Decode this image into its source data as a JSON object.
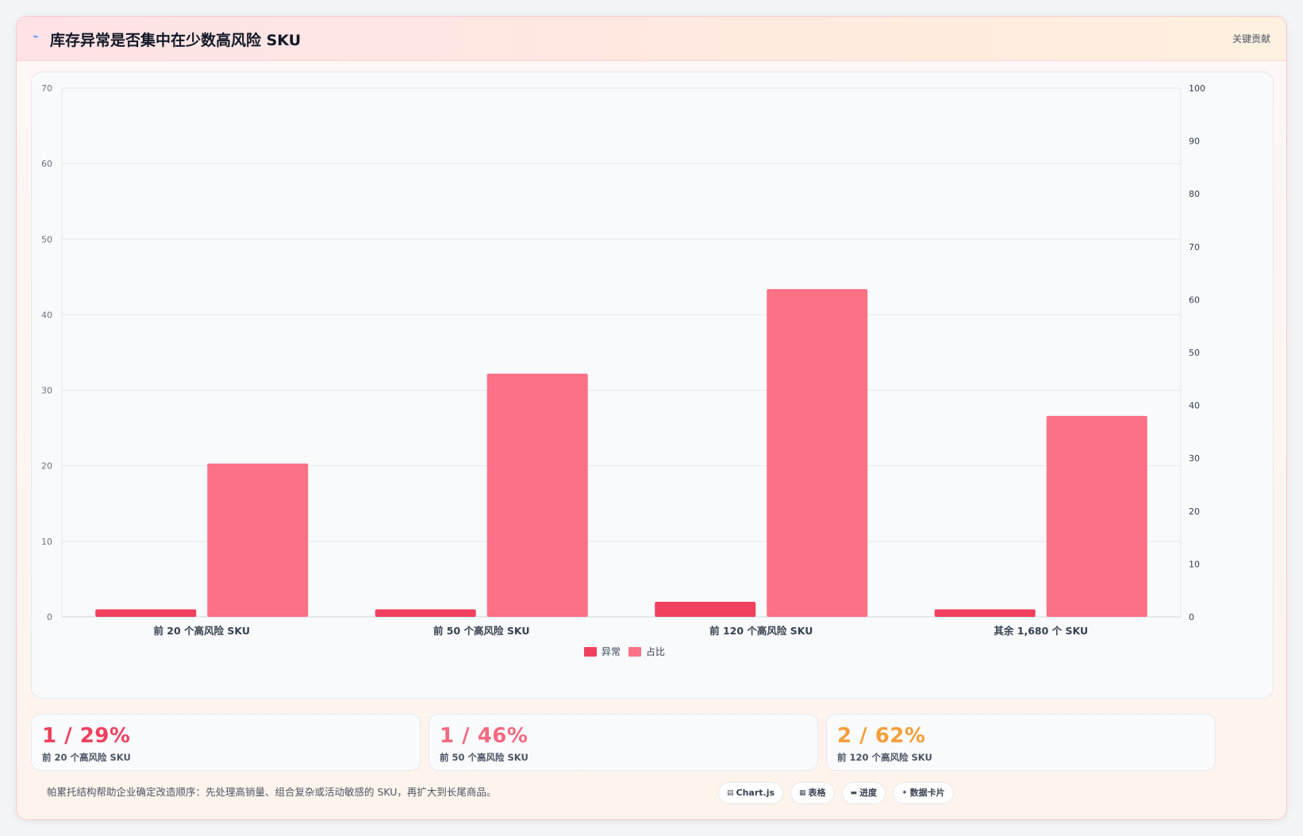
{
  "header": {
    "icon": "trend-line-icon",
    "title": "库存异常是否集中在少数高风险 SKU",
    "right_label": "关键贡献"
  },
  "colors": {
    "anomaly": "#f0405e",
    "share": "#fb7185",
    "stat_red": "#f0405e",
    "stat_pink": "#f4697f",
    "stat_orange": "#f59e3b"
  },
  "chart_data": {
    "type": "bar",
    "categories": [
      "前 20 个高风险 SKU",
      "前 50 个高风险 SKU",
      "前 120 个高风险 SKU",
      "其余 1,680 个 SKU"
    ],
    "series": [
      {
        "name": "异常",
        "axis": "left",
        "values": [
          1,
          1,
          2,
          1
        ]
      },
      {
        "name": "占比",
        "axis": "right",
        "values": [
          29,
          46,
          62,
          38
        ]
      }
    ],
    "y_left": {
      "min": 0,
      "max": 70,
      "ticks": [
        "0",
        "10",
        "20",
        "30",
        "40",
        "50",
        "60",
        "70"
      ]
    },
    "y_right": {
      "min": 0,
      "max": 100,
      "ticks": [
        "0",
        "10",
        "20",
        "30",
        "40",
        "50",
        "60",
        "70",
        "80",
        "90",
        "100"
      ]
    },
    "grid": true,
    "legend": "bottom"
  },
  "stats": [
    {
      "value": "1 / 29%",
      "label": "前 20 个高风险 SKU",
      "color": "#f0405e"
    },
    {
      "value": "1 / 46%",
      "label": "前 50 个高风险 SKU",
      "color": "#f4697f"
    },
    {
      "value": "2 / 62%",
      "label": "前 120 个高风险 SKU",
      "color": "#f59e3b"
    }
  ],
  "footer": {
    "note": "帕累托结构帮助企业确定改造顺序：先处理高销量、组合复杂或活动敏感的 SKU，再扩大到长尾商品。",
    "tags": [
      {
        "icon": "chart-icon",
        "glyph": "▤",
        "label": "Chart.js"
      },
      {
        "icon": "table-icon",
        "glyph": "▦",
        "label": "表格"
      },
      {
        "icon": "progress-icon",
        "glyph": "▬",
        "label": "进度"
      },
      {
        "icon": "data-card-icon",
        "glyph": "✦",
        "label": "数据卡片"
      }
    ]
  }
}
